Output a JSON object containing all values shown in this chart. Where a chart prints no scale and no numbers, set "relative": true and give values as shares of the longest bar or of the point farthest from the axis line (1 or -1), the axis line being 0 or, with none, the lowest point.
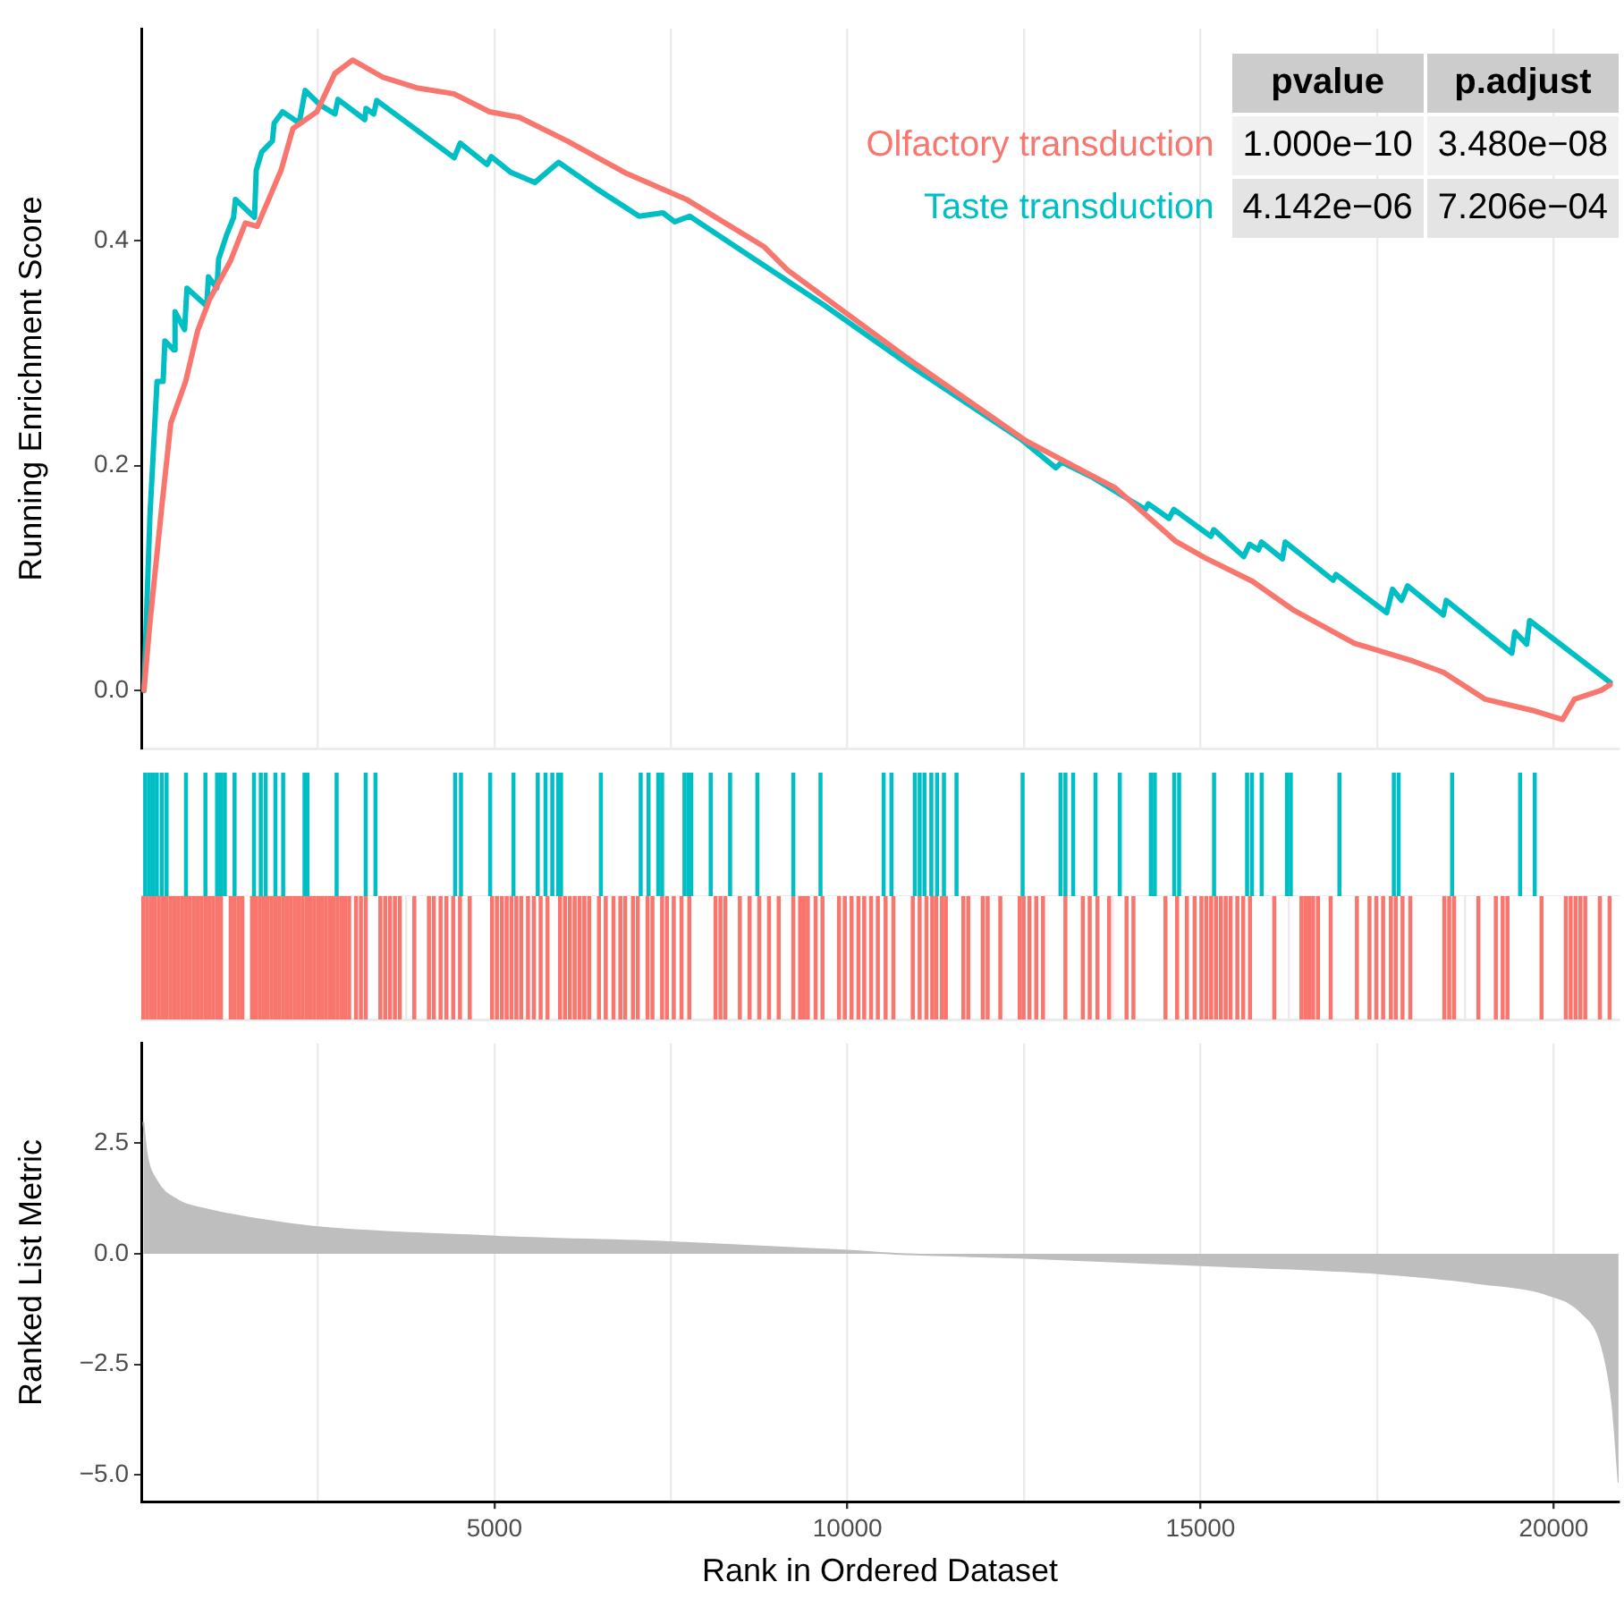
{
  "chart_data": [
    {
      "type": "line",
      "ylabel": "Running Enrichment Score",
      "xlim": [
        0,
        20920
      ],
      "ylim": [
        -0.052,
        0.589
      ],
      "xticks": [
        {
          "value": 2500,
          "label": null
        },
        5000,
        {
          "value": 7500,
          "label": null
        },
        10000,
        {
          "value": 12500,
          "label": null
        },
        15000,
        {
          "value": 17500,
          "label": null
        },
        20000
      ],
      "yticks": [
        {
          "value": 0,
          "label": "0.0"
        },
        0.2,
        0.4
      ],
      "grid": "x",
      "tick_labels": "y",
      "legend": "top right",
      "annotations": [
        "pvalue",
        "p.adjust",
        "1.000e−10",
        "3.480e−08",
        "4.142e−06",
        "7.206e−04"
      ],
      "series": [
        {
          "name": "Olfactory transduction",
          "color": "#f8766d",
          "x": [
            38,
            122,
            291,
            418,
            628,
            798,
            967,
            1261,
            1474,
            1641,
            1980,
            2147,
            2486,
            2740,
            2993,
            3413,
            3919,
            4426,
            4932,
            5355,
            6031,
            6874,
            7717,
            8816,
            9153,
            10842,
            12528,
            13794,
            14640,
            15060,
            15735,
            16326,
            17172,
            18008,
            18438,
            19032,
            19704,
            20125,
            20294,
            20674,
            20800
          ],
          "values": [
            0,
            0.06,
            0.164,
            0.238,
            0.275,
            0.32,
            0.348,
            0.382,
            0.416,
            0.413,
            0.463,
            0.5,
            0.515,
            0.549,
            0.561,
            0.546,
            0.536,
            0.531,
            0.515,
            0.51,
            0.489,
            0.46,
            0.437,
            0.395,
            0.374,
            0.296,
            0.222,
            0.18,
            0.133,
            0.118,
            0.097,
            0.071,
            0.042,
            0.026,
            0.016,
            -0.008,
            -0.018,
            -0.026,
            -0.008,
            0,
            0.005
          ]
        },
        {
          "name": "Taste transduction",
          "color": "#00bfc4",
          "x": [
            38,
            122,
            223,
            309,
            334,
            461,
            478,
            613,
            647,
            926,
            951,
            1070,
            1096,
            1206,
            1307,
            1333,
            1603,
            1628,
            1704,
            1856,
            1882,
            2000,
            2236,
            2321,
            2532,
            2743,
            2785,
            3165,
            3182,
            3292,
            3334,
            4431,
            4516,
            4896,
            4955,
            5234,
            5572,
            5909,
            6458,
            7049,
            7387,
            7555,
            7766,
            8653,
            9666,
            10842,
            12445,
            12951,
            13035,
            13458,
            13794,
            14217,
            14260,
            14554,
            14622,
            15146,
            15187,
            15610,
            15693,
            15820,
            15862,
            16159,
            16199,
            16876,
            16918,
            17635,
            17719,
            17846,
            17931,
            18438,
            18479,
            19408,
            19450,
            19618,
            19660,
            20800
          ],
          "values": [
            0,
            0.155,
            0.275,
            0.275,
            0.311,
            0.303,
            0.337,
            0.321,
            0.358,
            0.342,
            0.368,
            0.358,
            0.384,
            0.405,
            0.421,
            0.437,
            0.421,
            0.463,
            0.479,
            0.489,
            0.505,
            0.515,
            0.505,
            0.534,
            0.521,
            0.513,
            0.526,
            0.508,
            0.518,
            0.513,
            0.525,
            0.474,
            0.487,
            0.468,
            0.475,
            0.461,
            0.452,
            0.47,
            0.446,
            0.422,
            0.425,
            0.417,
            0.422,
            0.385,
            0.343,
            0.291,
            0.224,
            0.198,
            0.203,
            0.19,
            0.177,
            0.161,
            0.166,
            0.153,
            0.161,
            0.137,
            0.143,
            0.119,
            0.13,
            0.125,
            0.132,
            0.117,
            0.132,
            0.098,
            0.103,
            0.069,
            0.09,
            0.08,
            0.093,
            0.067,
            0.08,
            0.033,
            0.052,
            0.041,
            0.062,
            0.007
          ]
        }
      ]
    },
    {
      "type": "bar",
      "relative": true,
      "xlim": [
        0,
        20920
      ],
      "tick_labels": false,
      "series": [
        {
          "color": "#00bfc4",
          "x": [
            55,
            110,
            165,
            220,
            289,
            358,
            633,
            908,
            1073,
            1128,
            1183,
            1321,
            1596,
            1692,
            1761,
            1899,
            2009,
            2312,
            2353,
            2766,
            3178,
            3316,
            4444,
            4527,
            4940,
            5270,
            5614,
            5724,
            5820,
            5903,
            5944,
            6508,
            7072,
            7183,
            7320,
            7375,
            7692,
            7747,
            7788,
            8063,
            8338,
            8724,
            9233,
            9618,
            10512,
            10623,
            10953,
            11022,
            11090,
            11187,
            11269,
            11366,
            11544,
            12480,
            13017,
            13086,
            13196,
            13512,
            13856,
            14296,
            14352,
            14627,
            14696,
            15191,
            15659,
            15728,
            15865,
            16223,
            16278,
            16966,
            17737,
            17805,
            18562,
            19525,
            19732
          ],
          "values": [
            1,
            1,
            1,
            1,
            1,
            1,
            1,
            1,
            1,
            1,
            1,
            1,
            1,
            1,
            1,
            1,
            1,
            1,
            1,
            1,
            1,
            1,
            1,
            1,
            1,
            1,
            1,
            1,
            1,
            1,
            1,
            1,
            1,
            1,
            1,
            1,
            1,
            1,
            1,
            1,
            1,
            1,
            1,
            1,
            1,
            1,
            1,
            1,
            1,
            1,
            1,
            1,
            1,
            1,
            1,
            1,
            1,
            1,
            1,
            1,
            1,
            1,
            1,
            1,
            1,
            1,
            1,
            1,
            1,
            1,
            1,
            1,
            1,
            1,
            1
          ]
        }
      ]
    },
    {
      "type": "bar",
      "relative": true,
      "xlim": [
        0,
        20920
      ],
      "xticks": [
        {
          "value": 2500,
          "label": null
        },
        5000,
        {
          "value": 7500,
          "label": null
        },
        10000,
        {
          "value": 12500,
          "label": null
        },
        15000,
        {
          "value": 17500,
          "label": null
        },
        20000
      ],
      "grid": "x",
      "tick_labels": false,
      "series": [
        {
          "color": "#f8766d",
          "x": [
            27,
            82,
            137,
            192,
            248,
            303,
            358,
            413,
            468,
            523,
            578,
            633,
            688,
            743,
            798,
            853,
            908,
            963,
            1018,
            1073,
            1128,
            1266,
            1321,
            1376,
            1431,
            1568,
            1624,
            1679,
            1734,
            1789,
            1844,
            1899,
            1954,
            2009,
            2064,
            2119,
            2174,
            2229,
            2284,
            2339,
            2394,
            2449,
            2504,
            2559,
            2614,
            2669,
            2724,
            2779,
            2834,
            2889,
            2944,
            3041,
            3110,
            3178,
            3385,
            3454,
            3522,
            3591,
            3660,
            3866,
            4073,
            4142,
            4238,
            4320,
            4417,
            4513,
            4651,
            4967,
            5036,
            5105,
            5174,
            5242,
            5311,
            5380,
            5476,
            5559,
            5655,
            5752,
            5930,
            5999,
            6068,
            6137,
            6206,
            6274,
            6343,
            6481,
            6577,
            6687,
            6784,
            6852,
            6962,
            7031,
            7169,
            7238,
            7375,
            7444,
            7540,
            7650,
            7760,
            8132,
            8201,
            8270,
            8476,
            8614,
            8751,
            8889,
            9026,
            9233,
            9329,
            9384,
            9439,
            9549,
            9646,
            9880,
            9962,
            10058,
            10155,
            10237,
            10334,
            10430,
            10540,
            10650,
            10925,
            11022,
            11118,
            11200,
            11256,
            11338,
            11393,
            11641,
            11710,
            11916,
            11985,
            12164,
            12439,
            12494,
            12577,
            12673,
            12769,
            13086,
            13333,
            13430,
            13540,
            13705,
            13952,
            14049,
            14503,
            14668,
            14806,
            14916,
            15012,
            15081,
            15150,
            15218,
            15287,
            15356,
            15425,
            15521,
            15604,
            15700,
            16044,
            16429,
            16484,
            16539,
            16594,
            16663,
            16842,
            17214,
            17392,
            17489,
            17585,
            17695,
            17764,
            17860,
            17970,
            18452,
            18521,
            18590,
            18934,
            19181,
            19278,
            19346,
            19828,
            20172,
            20241,
            20310,
            20378,
            20447,
            20654,
            20792
          ],
          "values": [
            1,
            1,
            1,
            1,
            1,
            1,
            1,
            1,
            1,
            1,
            1,
            1,
            1,
            1,
            1,
            1,
            1,
            1,
            1,
            1,
            1,
            1,
            1,
            1,
            1,
            1,
            1,
            1,
            1,
            1,
            1,
            1,
            1,
            1,
            1,
            1,
            1,
            1,
            1,
            1,
            1,
            1,
            1,
            1,
            1,
            1,
            1,
            1,
            1,
            1,
            1,
            1,
            1,
            1,
            1,
            1,
            1,
            1,
            1,
            1,
            1,
            1,
            1,
            1,
            1,
            1,
            1,
            1,
            1,
            1,
            1,
            1,
            1,
            1,
            1,
            1,
            1,
            1,
            1,
            1,
            1,
            1,
            1,
            1,
            1,
            1,
            1,
            1,
            1,
            1,
            1,
            1,
            1,
            1,
            1,
            1,
            1,
            1,
            1,
            1,
            1,
            1,
            1,
            1,
            1,
            1,
            1,
            1,
            1,
            1,
            1,
            1,
            1,
            1,
            1,
            1,
            1,
            1,
            1,
            1,
            1,
            1,
            1,
            1,
            1,
            1,
            1,
            1,
            1,
            1,
            1,
            1,
            1,
            1,
            1,
            1,
            1,
            1,
            1,
            1,
            1,
            1,
            1,
            1,
            1,
            1,
            1,
            1,
            1,
            1,
            1,
            1,
            1,
            1,
            1,
            1,
            1,
            1,
            1,
            1,
            1,
            1,
            1,
            1,
            1,
            1,
            1,
            1,
            1,
            1,
            1,
            1,
            1,
            1,
            1,
            1,
            1,
            1,
            1,
            1,
            1,
            1,
            1,
            1,
            1,
            1,
            1,
            1,
            1,
            1
          ]
        }
      ]
    },
    {
      "type": "area",
      "xlabel": "Rank in Ordered Dataset",
      "ylabel": "Ranked List Metric",
      "xlim": [
        0,
        20920
      ],
      "ylim": [
        -5.6,
        4.75
      ],
      "xticks": [
        {
          "value": 2500,
          "label": null
        },
        5000,
        {
          "value": 7500,
          "label": null
        },
        10000,
        {
          "value": 12500,
          "label": null
        },
        15000,
        {
          "value": 17500,
          "label": null
        },
        20000
      ],
      "yticks": [
        {
          "value": -5,
          "label": "−5.0"
        },
        {
          "value": -2.5,
          "label": "−2.5"
        },
        {
          "value": 0,
          "label": "0.0"
        },
        2.5
      ],
      "grid": "x",
      "series": [
        {
          "color": "#bebebe",
          "x": [
            30,
            73,
            220,
            514,
            957,
            1691,
            2428,
            5006,
            7507,
            10009,
            10672,
            12513,
            15014,
            17516,
            18917,
            19947,
            20388,
            20681,
            20831,
            20919
          ],
          "values": [
            2.96,
            2.3,
            1.64,
            1.21,
            0.99,
            0.77,
            0.61,
            0.39,
            0.26,
            0.07,
            0,
            -0.09,
            -0.26,
            -0.44,
            -0.66,
            -0.94,
            -1.32,
            -2.08,
            -3.4,
            -5.15
          ]
        }
      ]
    }
  ]
}
